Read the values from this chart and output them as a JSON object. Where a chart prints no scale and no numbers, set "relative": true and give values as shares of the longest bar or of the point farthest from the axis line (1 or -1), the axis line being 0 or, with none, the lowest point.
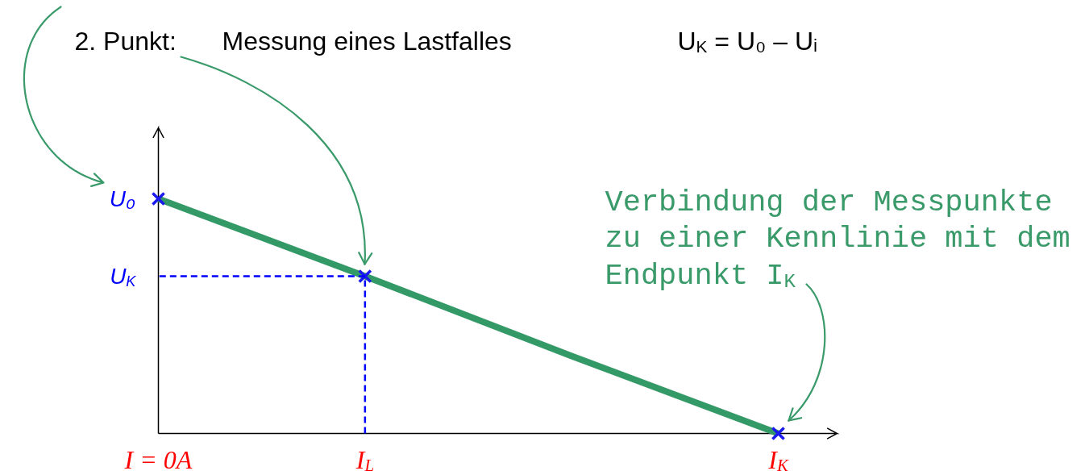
{
  "chart_data": {
    "type": "line",
    "relative": true,
    "categories": [
      "I = 0A",
      "I$_{L}$",
      null,
      "I$_{K}$"
    ],
    "series": [
      {
        "color": "#339966",
        "values": [
          1,
          0.67,
          0.33,
          0
        ]
      },
      {
        "type": "scatter",
        "color": "#1a1aee",
        "marker": "cross",
        "values": [
          1,
          0.67,
          null,
          0
        ]
      },
      {
        "color": "#0000ff",
        "line_style": "dashed",
        "x": [
          "I$_{L}$",
          "I$_{L}$",
          "I = 0A"
        ],
        "values": [
          0,
          0.67,
          0.67
        ]
      }
    ],
    "annotations": [
      "2. Punkt:",
      "Messung eines Lastfalles",
      "U$_{K}$ = U₀ – Uᵢ",
      "Verbindung der Messpunkte zu einer Kennlinie mit dem Endpunkt I$_{K}$",
      "U₀",
      "U$_{K}$"
    ]
  }
}
